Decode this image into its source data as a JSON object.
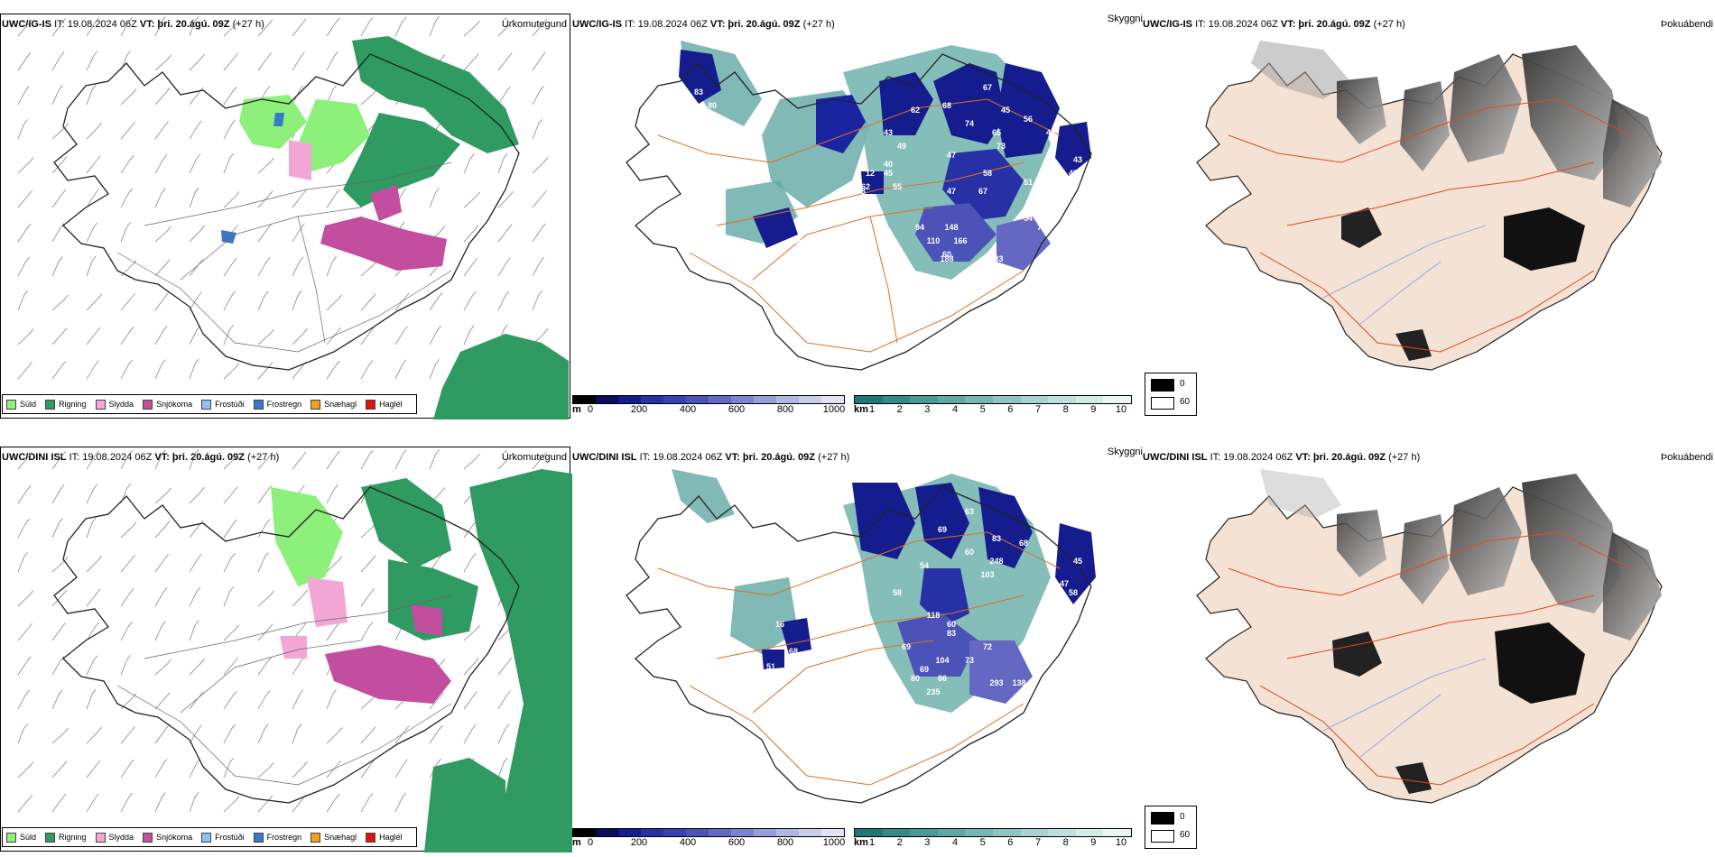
{
  "rows": [
    {
      "panels": {
        "precip": {
          "model": "UWC/IG-IS",
          "it_text": "IT: 19.08.2024 06Z",
          "vt_label": "VT:",
          "vt_value": "þri. 20.ágú. 09Z",
          "lead": "(+27 h)",
          "title": "Úrkomutegund"
        },
        "cloud": {
          "model": "UWC/IG-IS",
          "it_text": "IT: 19.08.2024 06Z",
          "vt_label": "VT:",
          "vt_value": "þri. 20.ágú. 09Z",
          "lead": "(+27 h)",
          "title": "Skyggni"
        },
        "fog": {
          "model": "UWC/IG-IS",
          "it_text": "IT: 19.08.2024 06Z",
          "vt_label": "VT:",
          "vt_value": "þri. 20.ágú. 09Z",
          "lead": "(+27 h)",
          "title": "Þokuábendi"
        }
      },
      "labels": [
        "67",
        "45",
        "56",
        "65",
        "46",
        "74",
        "73",
        "58",
        "47",
        "67",
        "51",
        "43",
        "45",
        "68",
        "62",
        "43",
        "49",
        "55",
        "62",
        "40",
        "12",
        "45",
        "93",
        "47",
        "54",
        "72",
        "94",
        "148",
        "60",
        "110",
        "166",
        "188",
        "283",
        "245",
        "75",
        "71",
        "46",
        "80",
        "83"
      ]
    },
    {
      "panels": {
        "precip": {
          "model": "UWC/DINI ISL",
          "it_text": "IT: 19.08.2024 06Z",
          "vt_label": "VT:",
          "vt_value": "þri. 20.ágú. 09Z",
          "lead": "(+27 h)",
          "title": "Úrkomutegund"
        },
        "cloud": {
          "model": "UWC/DINI ISL",
          "it_text": "IT: 19.08.2024 06Z",
          "vt_label": "VT:",
          "vt_value": "þri. 20.ágú. 09Z",
          "lead": "(+27 h)",
          "title": "Skyggni"
        },
        "fog": {
          "model": "UWC/DINI ISL",
          "it_text": "IT: 19.08.2024 06Z",
          "vt_label": "VT:",
          "vt_value": "þri. 20.ágú. 09Z",
          "lead": "(+27 h)",
          "title": "Þokuábendi"
        }
      },
      "labels": [
        "63",
        "69",
        "83",
        "68",
        "248",
        "60",
        "103",
        "45",
        "47",
        "58",
        "54",
        "58",
        "118",
        "60",
        "69",
        "83",
        "72",
        "104",
        "69",
        "80",
        "86",
        "73",
        "293",
        "138",
        "235",
        "68",
        "16",
        "51",
        "12"
      ]
    }
  ],
  "precip_legend": [
    {
      "label": "Súld",
      "color": "#8cf07a"
    },
    {
      "label": "Rigning",
      "color": "#2f9a62"
    },
    {
      "label": "Slydda",
      "color": "#f2a6d6"
    },
    {
      "label": "Snjókoma",
      "color": "#c34d9e"
    },
    {
      "label": "Frostúði",
      "color": "#8ec3f0"
    },
    {
      "label": "Frostregn",
      "color": "#3a78c8"
    },
    {
      "label": "Snæhagl",
      "color": "#f0a020"
    },
    {
      "label": "Haglél",
      "color": "#e01010"
    }
  ],
  "cloud_base_bar": {
    "unit": "m",
    "ticks": [
      "0",
      "200",
      "400",
      "600",
      "800",
      "1000"
    ],
    "colors": [
      "#000000",
      "#0b0b5e",
      "#141c8e",
      "#2730a5",
      "#3a40b0",
      "#4b53b8",
      "#6568c2",
      "#7e82cd",
      "#9a9ed8",
      "#b3b6e2",
      "#cbcdec",
      "#e2e3f5"
    ]
  },
  "visibility_bar": {
    "unit": "km",
    "ticks": [
      "1",
      "2",
      "3",
      "4",
      "5",
      "6",
      "7",
      "8",
      "9",
      "10"
    ],
    "colors": [
      "#1e7a74",
      "#348a84",
      "#4a9a94",
      "#60a8a2",
      "#78b7b1",
      "#90c5bf",
      "#a8d3ce",
      "#bfe0dc",
      "#d5ebe8",
      "#ebf6f4"
    ]
  },
  "fog_legend": [
    {
      "label": "0",
      "color": "#000000"
    },
    {
      "label": "60",
      "color": "#ffffff"
    }
  ]
}
